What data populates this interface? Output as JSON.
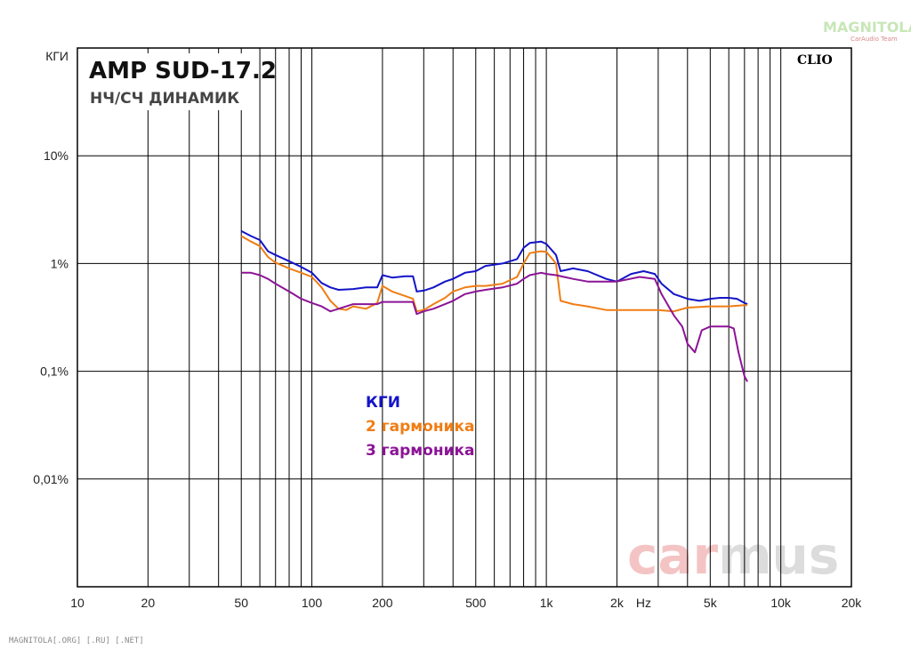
{
  "header": {
    "brand": "MAGNITOLA",
    "brand_sub": "CarAudio Team",
    "footer": "MAGNITOLA[.ORG] [.RU] [.NET]",
    "clio": "CLIO",
    "watermark_a": "car",
    "watermark_b": "mus"
  },
  "chart_data": {
    "type": "line",
    "title": "AMP SUD-17.2",
    "subtitle": "НЧ/СЧ ДИНАМИК",
    "xscale": "log",
    "yscale": "log",
    "xlim": [
      10,
      20000
    ],
    "ylim": [
      0.001,
      100
    ],
    "grid": true,
    "x_tick_labels": [
      {
        "x": 10,
        "label": "10"
      },
      {
        "x": 20,
        "label": "20"
      },
      {
        "x": 50,
        "label": "50"
      },
      {
        "x": 100,
        "label": "100"
      },
      {
        "x": 200,
        "label": "200"
      },
      {
        "x": 500,
        "label": "500"
      },
      {
        "x": 1000,
        "label": "1k"
      },
      {
        "x": 2000,
        "label": "2k"
      },
      {
        "x": 5000,
        "label": "5k"
      },
      {
        "x": 10000,
        "label": "10k"
      },
      {
        "x": 20000,
        "label": "20k"
      }
    ],
    "x_unit_label": "Hz",
    "y_tick_labels": [
      {
        "y": 100,
        "label": "КГИ"
      },
      {
        "y": 10,
        "label": "10%"
      },
      {
        "y": 1,
        "label": "1%"
      },
      {
        "y": 0.1,
        "label": "0,1%"
      },
      {
        "y": 0.01,
        "label": "0,01%"
      }
    ],
    "legend_position": "center",
    "series": [
      {
        "name": "КГИ",
        "color": "#1414c8",
        "points": [
          [
            50,
            2.0
          ],
          [
            55,
            1.8
          ],
          [
            60,
            1.65
          ],
          [
            65,
            1.3
          ],
          [
            70,
            1.2
          ],
          [
            80,
            1.05
          ],
          [
            90,
            0.93
          ],
          [
            100,
            0.82
          ],
          [
            110,
            0.66
          ],
          [
            120,
            0.6
          ],
          [
            130,
            0.57
          ],
          [
            150,
            0.58
          ],
          [
            170,
            0.6
          ],
          [
            190,
            0.6
          ],
          [
            200,
            0.78
          ],
          [
            220,
            0.74
          ],
          [
            250,
            0.76
          ],
          [
            270,
            0.76
          ],
          [
            280,
            0.55
          ],
          [
            300,
            0.56
          ],
          [
            330,
            0.6
          ],
          [
            370,
            0.68
          ],
          [
            400,
            0.72
          ],
          [
            450,
            0.82
          ],
          [
            500,
            0.85
          ],
          [
            550,
            0.95
          ],
          [
            650,
            1.0
          ],
          [
            750,
            1.1
          ],
          [
            800,
            1.4
          ],
          [
            850,
            1.55
          ],
          [
            950,
            1.6
          ],
          [
            1000,
            1.52
          ],
          [
            1100,
            1.2
          ],
          [
            1150,
            0.85
          ],
          [
            1300,
            0.9
          ],
          [
            1500,
            0.85
          ],
          [
            1800,
            0.72
          ],
          [
            2000,
            0.68
          ],
          [
            2300,
            0.8
          ],
          [
            2600,
            0.85
          ],
          [
            2900,
            0.8
          ],
          [
            3100,
            0.65
          ],
          [
            3500,
            0.52
          ],
          [
            4000,
            0.47
          ],
          [
            4500,
            0.45
          ],
          [
            5000,
            0.47
          ],
          [
            5500,
            0.48
          ],
          [
            6000,
            0.48
          ],
          [
            6500,
            0.47
          ],
          [
            7000,
            0.43
          ],
          [
            7200,
            0.42
          ]
        ]
      },
      {
        "name": "2 гармоника",
        "color": "#f07d14",
        "points": [
          [
            50,
            1.8
          ],
          [
            55,
            1.6
          ],
          [
            60,
            1.45
          ],
          [
            65,
            1.15
          ],
          [
            70,
            1.02
          ],
          [
            80,
            0.9
          ],
          [
            90,
            0.82
          ],
          [
            100,
            0.75
          ],
          [
            110,
            0.6
          ],
          [
            120,
            0.45
          ],
          [
            130,
            0.38
          ],
          [
            140,
            0.37
          ],
          [
            150,
            0.4
          ],
          [
            170,
            0.38
          ],
          [
            190,
            0.43
          ],
          [
            200,
            0.62
          ],
          [
            220,
            0.55
          ],
          [
            250,
            0.5
          ],
          [
            270,
            0.47
          ],
          [
            280,
            0.36
          ],
          [
            300,
            0.37
          ],
          [
            330,
            0.42
          ],
          [
            370,
            0.48
          ],
          [
            400,
            0.55
          ],
          [
            450,
            0.6
          ],
          [
            500,
            0.62
          ],
          [
            550,
            0.62
          ],
          [
            650,
            0.65
          ],
          [
            750,
            0.75
          ],
          [
            800,
            1.0
          ],
          [
            850,
            1.25
          ],
          [
            950,
            1.3
          ],
          [
            1000,
            1.28
          ],
          [
            1100,
            1.0
          ],
          [
            1150,
            0.45
          ],
          [
            1300,
            0.42
          ],
          [
            1500,
            0.4
          ],
          [
            1800,
            0.37
          ],
          [
            2000,
            0.37
          ],
          [
            2500,
            0.37
          ],
          [
            3000,
            0.37
          ],
          [
            3500,
            0.36
          ],
          [
            4000,
            0.39
          ],
          [
            5000,
            0.4
          ],
          [
            6000,
            0.4
          ],
          [
            7000,
            0.41
          ],
          [
            7200,
            0.41
          ]
        ]
      },
      {
        "name": "3 гармоника",
        "color": "#8c1496",
        "points": [
          [
            50,
            0.82
          ],
          [
            55,
            0.82
          ],
          [
            60,
            0.78
          ],
          [
            65,
            0.72
          ],
          [
            70,
            0.65
          ],
          [
            80,
            0.55
          ],
          [
            90,
            0.47
          ],
          [
            100,
            0.43
          ],
          [
            110,
            0.4
          ],
          [
            120,
            0.36
          ],
          [
            130,
            0.38
          ],
          [
            150,
            0.42
          ],
          [
            170,
            0.42
          ],
          [
            190,
            0.42
          ],
          [
            200,
            0.44
          ],
          [
            220,
            0.44
          ],
          [
            250,
            0.44
          ],
          [
            270,
            0.44
          ],
          [
            280,
            0.34
          ],
          [
            300,
            0.36
          ],
          [
            330,
            0.38
          ],
          [
            370,
            0.42
          ],
          [
            400,
            0.45
          ],
          [
            450,
            0.52
          ],
          [
            500,
            0.55
          ],
          [
            550,
            0.57
          ],
          [
            650,
            0.6
          ],
          [
            750,
            0.65
          ],
          [
            800,
            0.72
          ],
          [
            850,
            0.78
          ],
          [
            950,
            0.82
          ],
          [
            1000,
            0.8
          ],
          [
            1100,
            0.78
          ],
          [
            1300,
            0.72
          ],
          [
            1500,
            0.68
          ],
          [
            1800,
            0.68
          ],
          [
            2000,
            0.68
          ],
          [
            2500,
            0.75
          ],
          [
            2900,
            0.72
          ],
          [
            3100,
            0.52
          ],
          [
            3500,
            0.33
          ],
          [
            3800,
            0.26
          ],
          [
            4000,
            0.18
          ],
          [
            4300,
            0.15
          ],
          [
            4600,
            0.24
          ],
          [
            5000,
            0.26
          ],
          [
            5500,
            0.26
          ],
          [
            6000,
            0.26
          ],
          [
            6300,
            0.25
          ],
          [
            6600,
            0.15
          ],
          [
            7000,
            0.09
          ],
          [
            7200,
            0.08
          ]
        ]
      }
    ]
  }
}
